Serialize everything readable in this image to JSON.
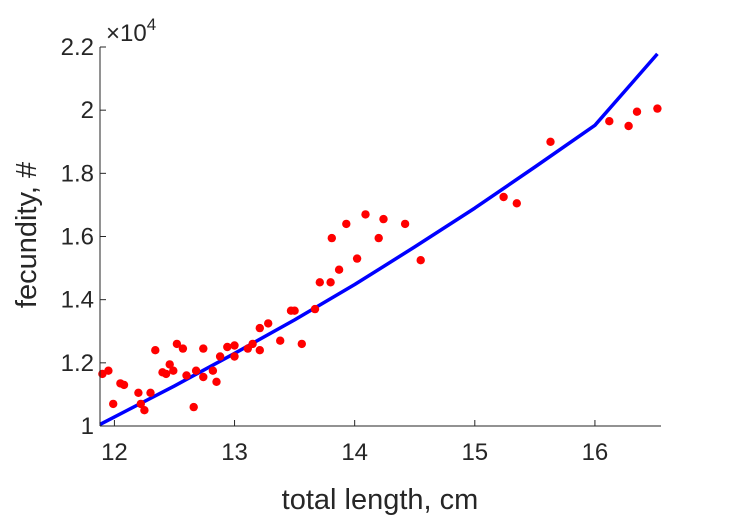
{
  "chart_data": {
    "type": "scatter",
    "xlabel": "total length, cm",
    "ylabel": "fecundity, #",
    "xlim": [
      11.88,
      16.55
    ],
    "ylim": [
      1.0,
      2.2
    ],
    "y_multiplier_label": "×10",
    "y_multiplier_exponent": "4",
    "x_ticks": [
      12,
      13,
      14,
      15,
      16
    ],
    "x_tick_labels": [
      "12",
      "13",
      "14",
      "15",
      "16"
    ],
    "y_ticks": [
      1.0,
      1.2,
      1.4,
      1.6,
      1.8,
      2.0,
      2.2
    ],
    "y_tick_labels": [
      "1",
      "1.2",
      "1.4",
      "1.6",
      "1.8",
      "2",
      "2.2"
    ],
    "grid": false,
    "legend": "none",
    "colors": {
      "points": "#ff0000",
      "fit_line": "#0000ff",
      "axis": "#262626"
    },
    "series": [
      {
        "type": "scatter",
        "points": [
          [
            11.9,
            1.165
          ],
          [
            11.95,
            1.175
          ],
          [
            11.99,
            1.07
          ],
          [
            12.05,
            1.135
          ],
          [
            12.08,
            1.13
          ],
          [
            12.2,
            1.105
          ],
          [
            12.22,
            1.07
          ],
          [
            12.25,
            1.05
          ],
          [
            12.3,
            1.105
          ],
          [
            12.34,
            1.24
          ],
          [
            12.4,
            1.17
          ],
          [
            12.43,
            1.165
          ],
          [
            12.46,
            1.195
          ],
          [
            12.49,
            1.175
          ],
          [
            12.52,
            1.26
          ],
          [
            12.57,
            1.245
          ],
          [
            12.6,
            1.16
          ],
          [
            12.66,
            1.06
          ],
          [
            12.68,
            1.175
          ],
          [
            12.74,
            1.245
          ],
          [
            12.74,
            1.155
          ],
          [
            12.82,
            1.175
          ],
          [
            12.85,
            1.14
          ],
          [
            12.88,
            1.22
          ],
          [
            12.94,
            1.25
          ],
          [
            13.0,
            1.255
          ],
          [
            13.0,
            1.22
          ],
          [
            13.11,
            1.245
          ],
          [
            13.15,
            1.26
          ],
          [
            13.21,
            1.24
          ],
          [
            13.21,
            1.31
          ],
          [
            13.28,
            1.325
          ],
          [
            13.38,
            1.27
          ],
          [
            13.47,
            1.365
          ],
          [
            13.5,
            1.365
          ],
          [
            13.56,
            1.26
          ],
          [
            13.67,
            1.37
          ],
          [
            13.71,
            1.455
          ],
          [
            13.8,
            1.455
          ],
          [
            13.81,
            1.595
          ],
          [
            13.87,
            1.495
          ],
          [
            13.93,
            1.64
          ],
          [
            14.02,
            1.53
          ],
          [
            14.09,
            1.67
          ],
          [
            14.2,
            1.595
          ],
          [
            14.24,
            1.655
          ],
          [
            14.42,
            1.64
          ],
          [
            14.55,
            1.525
          ],
          [
            15.24,
            1.725
          ],
          [
            15.35,
            1.705
          ],
          [
            15.63,
            1.9
          ],
          [
            16.12,
            1.965
          ],
          [
            16.28,
            1.95
          ],
          [
            16.35,
            1.995
          ],
          [
            16.52,
            2.005
          ]
        ]
      },
      {
        "type": "line",
        "points": [
          [
            11.88,
            1.005
          ],
          [
            12.5,
            1.127
          ],
          [
            13.0,
            1.23
          ],
          [
            13.5,
            1.336
          ],
          [
            14.0,
            1.448
          ],
          [
            14.5,
            1.567
          ],
          [
            15.0,
            1.69
          ],
          [
            15.5,
            1.82
          ],
          [
            16.0,
            1.952
          ],
          [
            16.52,
            2.178
          ]
        ]
      }
    ]
  }
}
